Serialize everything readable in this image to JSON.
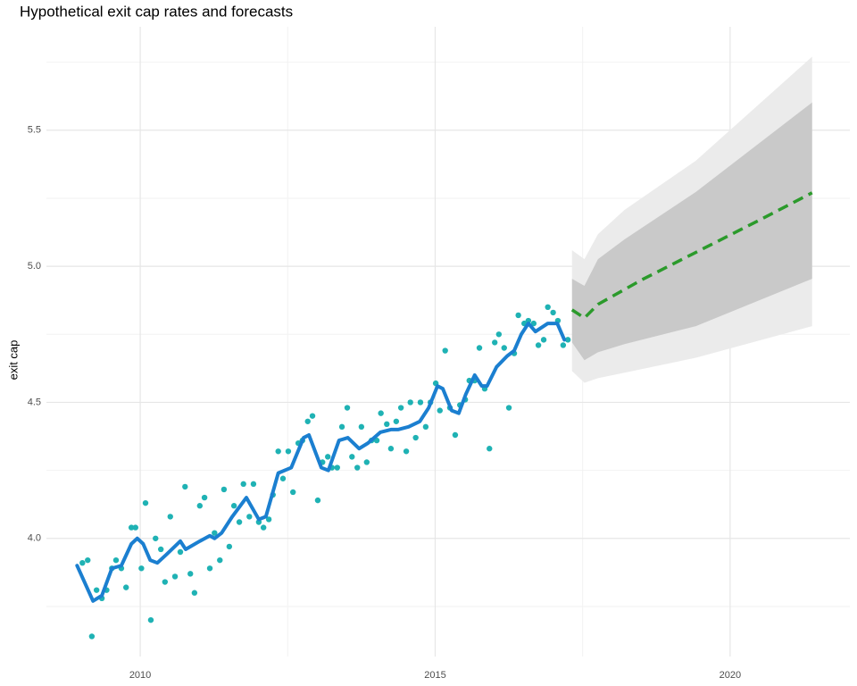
{
  "chart_data": {
    "type": "line",
    "title": "Hypothetical exit cap rates and forecasts",
    "ylabel": "exit cap",
    "xlim": [
      2008.41,
      2022.03
    ],
    "ylim": [
      3.566,
      5.88
    ],
    "xticks": [
      2010,
      2015,
      2020
    ],
    "yticks": [
      {
        "value": 4.0,
        "label": "4.0"
      },
      {
        "value": 4.5,
        "label": "4.5"
      },
      {
        "value": 5.0,
        "label": "5.0"
      },
      {
        "value": 5.5,
        "label": "5.5"
      }
    ],
    "x_minor_grid": [
      2012.5,
      2017.5
    ],
    "y_minor_grid": [
      3.75,
      4.25,
      4.75,
      5.25,
      5.75
    ],
    "grid": true,
    "points": {
      "color": "#1fb2b4",
      "x": [
        2009.02,
        2009.11,
        2009.18,
        2009.26,
        2009.35,
        2009.43,
        2009.52,
        2009.59,
        2009.68,
        2009.76,
        2009.85,
        2009.92,
        2010.02,
        2010.09,
        2010.18,
        2010.26,
        2010.35,
        2010.42,
        2010.51,
        2010.59,
        2010.68,
        2010.76,
        2010.85,
        2010.92,
        2011.01,
        2011.09,
        2011.18,
        2011.26,
        2011.35,
        2011.42,
        2011.51,
        2011.59,
        2011.68,
        2011.75,
        2011.85,
        2011.92,
        2012.01,
        2012.09,
        2012.18,
        2012.25,
        2012.34,
        2012.42,
        2012.51,
        2012.59,
        2012.68,
        2012.75,
        2012.84,
        2012.92,
        2013.01,
        2013.09,
        2013.18,
        2013.25,
        2013.34,
        2013.42,
        2013.51,
        2013.59,
        2013.68,
        2013.75,
        2013.84,
        2013.92,
        2014.01,
        2014.08,
        2014.18,
        2014.25,
        2014.34,
        2014.42,
        2014.51,
        2014.58,
        2014.67,
        2014.75,
        2014.84,
        2014.92,
        2015.01,
        2015.08,
        2015.17,
        2015.25,
        2015.34,
        2015.42,
        2015.51,
        2015.58,
        2015.67,
        2015.75,
        2015.84,
        2015.92,
        2016.01,
        2016.08,
        2016.17,
        2016.25,
        2016.34,
        2016.41,
        2016.51,
        2016.58,
        2016.67,
        2016.75,
        2016.84,
        2016.91,
        2017.0,
        2017.08,
        2017.17,
        2017.25
      ],
      "values": [
        3.91,
        3.92,
        3.64,
        3.81,
        3.78,
        3.81,
        3.89,
        3.92,
        3.89,
        3.82,
        4.04,
        4.04,
        3.89,
        4.13,
        3.7,
        4.0,
        3.96,
        3.84,
        4.08,
        3.86,
        3.95,
        4.19,
        3.87,
        3.8,
        4.12,
        4.15,
        3.89,
        4.02,
        3.92,
        4.18,
        3.97,
        4.12,
        4.06,
        4.2,
        4.08,
        4.2,
        4.06,
        4.04,
        4.07,
        4.16,
        4.32,
        4.22,
        4.32,
        4.17,
        4.35,
        4.36,
        4.43,
        4.45,
        4.14,
        4.28,
        4.3,
        4.26,
        4.26,
        4.41,
        4.48,
        4.3,
        4.26,
        4.41,
        4.28,
        4.36,
        4.36,
        4.46,
        4.42,
        4.33,
        4.43,
        4.48,
        4.32,
        4.5,
        4.37,
        4.5,
        4.41,
        4.5,
        4.57,
        4.47,
        4.69,
        4.48,
        4.38,
        4.49,
        4.51,
        4.58,
        4.58,
        4.7,
        4.55,
        4.33,
        4.72,
        4.75,
        4.7,
        4.48,
        4.68,
        4.82,
        4.79,
        4.8,
        4.79,
        4.71,
        4.73,
        4.85,
        4.83,
        4.8,
        4.71,
        4.73
      ]
    },
    "fitted": {
      "color": "#1b7fd0",
      "x": [
        2008.93,
        2009.2,
        2009.35,
        2009.52,
        2009.68,
        2009.85,
        2009.95,
        2010.05,
        2010.17,
        2010.29,
        2010.44,
        2010.68,
        2010.77,
        2011.01,
        2011.18,
        2011.26,
        2011.38,
        2011.56,
        2011.8,
        2012.01,
        2012.13,
        2012.34,
        2012.56,
        2012.77,
        2012.86,
        2013.07,
        2013.19,
        2013.37,
        2013.52,
        2013.71,
        2013.86,
        2014.07,
        2014.25,
        2014.37,
        2014.55,
        2014.74,
        2014.89,
        2015.04,
        2015.13,
        2015.28,
        2015.4,
        2015.52,
        2015.67,
        2015.79,
        2015.88,
        2016.04,
        2016.22,
        2016.34,
        2016.46,
        2016.58,
        2016.7,
        2016.91,
        2017.07,
        2017.19
      ],
      "values": [
        3.9,
        3.77,
        3.79,
        3.89,
        3.9,
        3.98,
        4.0,
        3.98,
        3.92,
        3.91,
        3.94,
        3.99,
        3.96,
        3.99,
        4.01,
        4.0,
        4.02,
        4.08,
        4.15,
        4.07,
        4.08,
        4.24,
        4.26,
        4.37,
        4.38,
        4.26,
        4.25,
        4.36,
        4.37,
        4.33,
        4.35,
        4.39,
        4.4,
        4.4,
        4.41,
        4.43,
        4.48,
        4.56,
        4.55,
        4.47,
        4.46,
        4.53,
        4.6,
        4.56,
        4.56,
        4.63,
        4.67,
        4.69,
        4.75,
        4.79,
        4.76,
        4.79,
        4.79,
        4.73
      ]
    },
    "forecast": {
      "color": "#2b9a2b",
      "x": [
        2017.32,
        2017.53,
        2017.76,
        2018.5,
        2019.5,
        2020.5,
        2021.39
      ],
      "values": [
        4.84,
        4.81,
        4.86,
        4.95,
        5.06,
        5.17,
        5.27
      ]
    },
    "bands": [
      {
        "color": "#ebebeb",
        "x": [
          2017.32,
          2017.53,
          2017.76,
          2018.21,
          2019.42,
          2021.39
        ],
        "lower": [
          4.615,
          4.572,
          4.589,
          4.609,
          4.664,
          4.78
        ],
        "upper": [
          5.059,
          5.026,
          5.118,
          5.207,
          5.388,
          5.77
        ]
      },
      {
        "color": "#c9c9c9",
        "x": [
          2017.32,
          2017.53,
          2017.76,
          2018.21,
          2019.42,
          2021.39
        ],
        "lower": [
          4.72,
          4.655,
          4.684,
          4.714,
          4.78,
          4.954
        ],
        "upper": [
          4.954,
          4.928,
          5.026,
          5.099,
          5.273,
          5.602
        ]
      }
    ]
  }
}
